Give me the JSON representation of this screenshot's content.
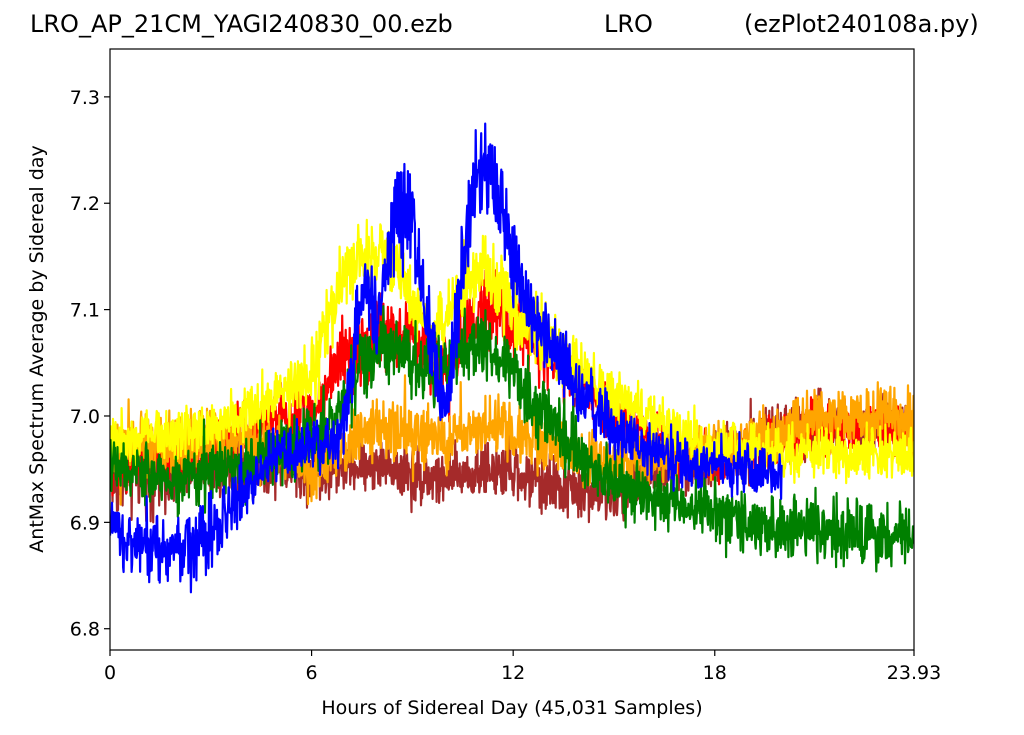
{
  "header": {
    "left": "LRO_AP_21CM_YAGI240830_00.ezb",
    "center": "LRO",
    "right": "(ezPlot240108a.py)"
  },
  "chart_data": {
    "type": "line",
    "xlabel": "Hours of Sidereal Day  (45,031 Samples)",
    "ylabel": "AntMax Spectrum Average by Sidereal day",
    "xlim": [
      0,
      23.93
    ],
    "ylim": [
      6.78,
      7.345
    ],
    "xticks": [
      0,
      6,
      12,
      18,
      23.93
    ],
    "xtick_labels": [
      "0",
      "6",
      "12",
      "18",
      "23.93"
    ],
    "yticks": [
      6.8,
      6.9,
      7.0,
      7.1,
      7.2,
      7.3
    ],
    "ytick_labels": [
      "6.8",
      "6.9",
      "7.0",
      "7.1",
      "7.2",
      "7.3"
    ],
    "legend": "none",
    "grid": false,
    "noise_note": "dense noisy traces; values below are approximate center lines with spread",
    "series": [
      {
        "color": "#a52a2a",
        "x": [
          0,
          2,
          4,
          5,
          6,
          7,
          8,
          9,
          10,
          11,
          12,
          13,
          14,
          15,
          16,
          17,
          18,
          19,
          20,
          21,
          22,
          23,
          23.93
        ],
        "center": [
          6.94,
          6.95,
          6.96,
          6.955,
          6.945,
          6.95,
          6.955,
          6.945,
          6.94,
          6.95,
          6.945,
          6.935,
          6.93,
          6.925,
          6.94,
          6.95,
          6.96,
          6.97,
          6.985,
          6.99,
          6.99,
          6.995,
          6.99
        ],
        "spread": [
          0.05,
          0.05,
          0.05,
          0.04,
          0.04,
          0.03,
          0.035,
          0.04,
          0.04,
          0.04,
          0.04,
          0.04,
          0.04,
          0.035,
          0.035,
          0.035,
          0.04,
          0.04,
          0.04,
          0.045,
          0.04,
          0.04,
          0.04
        ]
      },
      {
        "color": "#ff0000",
        "x": [
          0,
          2,
          4,
          5,
          6,
          7,
          8,
          9,
          10,
          11,
          12,
          13,
          14,
          15,
          16,
          17,
          18,
          19,
          20,
          21,
          22,
          23,
          23.93
        ],
        "center": [
          6.96,
          6.96,
          6.98,
          7.0,
          7.0,
          7.06,
          7.08,
          7.08,
          7.04,
          7.1,
          7.09,
          7.06,
          7.03,
          7.0,
          6.98,
          6.96,
          6.96,
          6.97,
          6.98,
          6.99,
          6.99,
          6.99,
          6.98
        ],
        "spread": [
          0.04,
          0.04,
          0.04,
          0.04,
          0.035,
          0.05,
          0.05,
          0.05,
          0.05,
          0.05,
          0.05,
          0.045,
          0.04,
          0.04,
          0.035,
          0.035,
          0.035,
          0.035,
          0.035,
          0.035,
          0.035,
          0.035,
          0.035
        ]
      },
      {
        "color": "#ffa500",
        "x": [
          0,
          2,
          4,
          5,
          6,
          7,
          8,
          9,
          10,
          11,
          12,
          13,
          14,
          15,
          16,
          17,
          18,
          19,
          20,
          21,
          22,
          23,
          23.93
        ],
        "center": [
          6.97,
          6.97,
          6.98,
          6.97,
          6.95,
          6.97,
          6.99,
          6.985,
          6.975,
          6.99,
          6.985,
          6.975,
          6.96,
          6.955,
          6.96,
          6.965,
          6.97,
          6.975,
          6.985,
          6.995,
          7.0,
          7.0,
          6.995
        ],
        "spread": [
          0.04,
          0.045,
          0.04,
          0.04,
          0.04,
          0.04,
          0.04,
          0.04,
          0.04,
          0.04,
          0.04,
          0.04,
          0.035,
          0.035,
          0.035,
          0.035,
          0.035,
          0.04,
          0.04,
          0.04,
          0.04,
          0.04,
          0.04
        ]
      },
      {
        "color": "#ffff00",
        "x": [
          0,
          2,
          4,
          5,
          6,
          6.8,
          7.5,
          8.5,
          9.5,
          10.5,
          11,
          12,
          13,
          14,
          15,
          16,
          17,
          18,
          19,
          20,
          21,
          22,
          23,
          23.93
        ],
        "center": [
          6.98,
          6.985,
          7.0,
          7.02,
          7.04,
          7.12,
          7.15,
          7.14,
          7.07,
          7.12,
          7.14,
          7.1,
          7.07,
          7.04,
          7.02,
          7.0,
          6.98,
          6.97,
          6.97,
          6.965,
          6.965,
          6.965,
          6.965,
          6.96
        ],
        "spread": [
          0.035,
          0.035,
          0.035,
          0.04,
          0.05,
          0.05,
          0.05,
          0.05,
          0.05,
          0.05,
          0.05,
          0.05,
          0.045,
          0.04,
          0.04,
          0.035,
          0.035,
          0.035,
          0.035,
          0.035,
          0.035,
          0.035,
          0.035,
          0.035
        ]
      },
      {
        "color": "#008000",
        "x": [
          0,
          1,
          2,
          3,
          4,
          5,
          6,
          6.8,
          7.5,
          8.5,
          9.5,
          10,
          11,
          12,
          13,
          14,
          15,
          16,
          17,
          18,
          19,
          20,
          21,
          22,
          23,
          23.93
        ],
        "center": [
          6.955,
          6.945,
          6.94,
          6.945,
          6.955,
          6.965,
          6.975,
          7.0,
          7.05,
          7.07,
          7.04,
          7.05,
          7.07,
          7.04,
          7.0,
          6.96,
          6.94,
          6.925,
          6.915,
          6.91,
          6.9,
          6.895,
          6.895,
          6.89,
          6.89,
          6.885
        ],
        "spread": [
          0.04,
          0.04,
          0.04,
          0.04,
          0.04,
          0.04,
          0.04,
          0.05,
          0.05,
          0.05,
          0.05,
          0.05,
          0.05,
          0.05,
          0.05,
          0.045,
          0.04,
          0.04,
          0.04,
          0.04,
          0.04,
          0.04,
          0.045,
          0.05,
          0.045,
          0.04
        ]
      },
      {
        "color": "#0000ff",
        "x": [
          0,
          1,
          2,
          3,
          4,
          5,
          6,
          6.8,
          7,
          7.5,
          8,
          8.5,
          9,
          9.5,
          10,
          10.3,
          10.8,
          11.2,
          11.6,
          12,
          12.5,
          13,
          13.5,
          14,
          15,
          16,
          17,
          18,
          19,
          19.99
        ],
        "center": [
          6.89,
          6.88,
          6.875,
          6.89,
          6.93,
          6.965,
          6.97,
          6.975,
          7.0,
          7.12,
          7.1,
          7.2,
          7.19,
          7.08,
          7.0,
          7.1,
          7.21,
          7.23,
          7.2,
          7.15,
          7.1,
          7.07,
          7.05,
          7.02,
          6.985,
          6.97,
          6.96,
          6.955,
          6.95,
          6.94
        ],
        "spread": [
          0.05,
          0.05,
          0.05,
          0.05,
          0.04,
          0.04,
          0.035,
          0.035,
          0.05,
          0.06,
          0.06,
          0.07,
          0.06,
          0.06,
          0.05,
          0.06,
          0.07,
          0.07,
          0.06,
          0.06,
          0.05,
          0.05,
          0.045,
          0.045,
          0.04,
          0.04,
          0.035,
          0.035,
          0.035,
          0.035
        ]
      }
    ]
  }
}
